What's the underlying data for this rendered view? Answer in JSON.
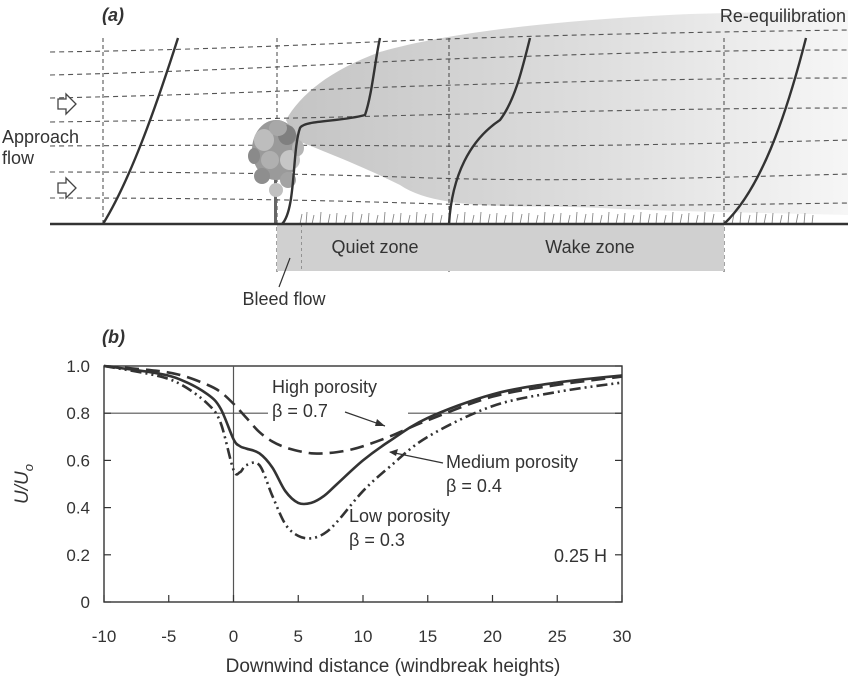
{
  "panel_a": {
    "label": "(a)",
    "approach": "Approach\nflow",
    "reequilibration": "Re-equilibration",
    "bleed_flow": "Bleed flow",
    "quiet_zone": "Quiet zone",
    "wake_zone": "Wake zone"
  },
  "panel_b": {
    "label": "(b)",
    "annotations": {
      "high": [
        "High porosity",
        "β = 0.7"
      ],
      "medium": [
        "Medium porosity",
        "β = 0.4"
      ],
      "low": [
        "Low porosity",
        "β = 0.3"
      ],
      "height": "0.25 H"
    }
  },
  "chart_data": {
    "type": "line",
    "xlabel": "Downwind distance (windbreak heights)",
    "ylabel": "U/Uo",
    "xlim": [
      -10,
      30
    ],
    "ylim": [
      0,
      1.0
    ],
    "xticks": [
      -10,
      -5,
      0,
      5,
      10,
      15,
      20,
      25,
      30
    ],
    "yticks": [
      "0",
      "0.2",
      "0.4",
      "0.6",
      "0.8",
      "1.0"
    ],
    "reference_lines": {
      "y": 0.8,
      "x": 0
    },
    "series": [
      {
        "name": "High porosity β = 0.7",
        "style": "dashed",
        "x": [
          -10,
          -6,
          -4,
          -2,
          -1,
          0,
          1,
          2,
          3,
          4,
          5,
          6,
          7,
          8,
          9,
          10,
          12,
          15,
          20,
          25,
          30
        ],
        "y": [
          1.0,
          0.98,
          0.96,
          0.92,
          0.89,
          0.84,
          0.78,
          0.72,
          0.68,
          0.655,
          0.64,
          0.63,
          0.63,
          0.635,
          0.645,
          0.66,
          0.7,
          0.77,
          0.87,
          0.92,
          0.955
        ]
      },
      {
        "name": "Medium porosity β = 0.4",
        "style": "solid",
        "x": [
          -10,
          -6,
          -4,
          -2,
          -1,
          0,
          0.5,
          1,
          2,
          3,
          4,
          5,
          6,
          7,
          8,
          10,
          12,
          15,
          20,
          25,
          30
        ],
        "y": [
          1.0,
          0.97,
          0.94,
          0.88,
          0.82,
          0.69,
          0.66,
          0.65,
          0.63,
          0.57,
          0.47,
          0.42,
          0.42,
          0.45,
          0.5,
          0.6,
          0.68,
          0.78,
          0.88,
          0.93,
          0.96
        ]
      },
      {
        "name": "Low porosity β = 0.3",
        "style": "dash-dot",
        "x": [
          -10,
          -6,
          -4,
          -2,
          -1,
          0,
          0.5,
          1,
          2,
          3,
          4,
          5,
          6,
          7,
          8,
          10,
          12,
          15,
          20,
          25,
          30
        ],
        "y": [
          1.0,
          0.96,
          0.92,
          0.84,
          0.76,
          0.56,
          0.55,
          0.58,
          0.58,
          0.45,
          0.33,
          0.28,
          0.27,
          0.29,
          0.34,
          0.47,
          0.57,
          0.7,
          0.83,
          0.89,
          0.93
        ]
      }
    ]
  }
}
